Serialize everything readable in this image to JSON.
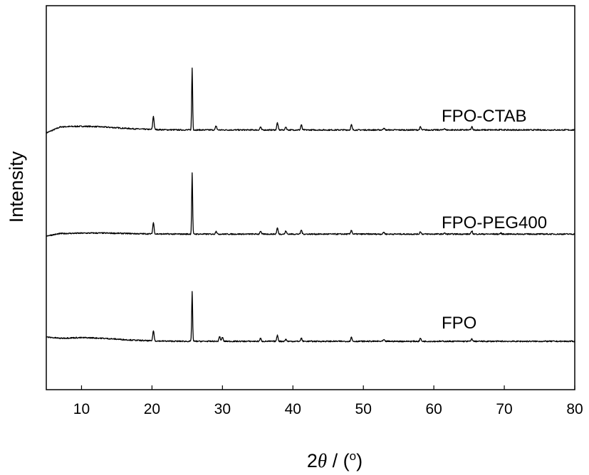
{
  "chart_data": {
    "type": "line",
    "title": "",
    "xlabel": "2θ / (°)",
    "xlabel_parts": {
      "prefix": "2",
      "symbol": "θ",
      "suffix": " / (",
      "degree": "o",
      "close": ")"
    },
    "ylabel": "Intensity",
    "xlim": [
      5,
      80
    ],
    "xticks": [
      10,
      20,
      30,
      40,
      50,
      60,
      70,
      80
    ],
    "ytick_labels": false,
    "grid": false,
    "legend": "none",
    "line_color": "#000000",
    "series": [
      {
        "name": "FPO-CTAB",
        "baseline": 2.05,
        "start_value": 2.0,
        "amorphous_hump": {
          "center": 10,
          "height": 0.035,
          "width": 7
        },
        "peaks": [
          [
            20.2,
            0.13
          ],
          [
            25.7,
            0.6
          ],
          [
            29.1,
            0.04
          ],
          [
            35.4,
            0.03
          ],
          [
            37.8,
            0.07
          ],
          [
            39.0,
            0.03
          ],
          [
            41.2,
            0.05
          ],
          [
            48.3,
            0.05
          ],
          [
            52.9,
            0.02
          ],
          [
            58.1,
            0.03
          ],
          [
            61.5,
            0.015
          ],
          [
            65.4,
            0.03
          ],
          [
            69.5,
            0.01
          ]
        ]
      },
      {
        "name": "FPO-PEG400",
        "baseline": 1.04,
        "start_value": 1.02,
        "amorphous_hump": {
          "center": 12,
          "height": 0.01,
          "width": 6
        },
        "peaks": [
          [
            20.2,
            0.11
          ],
          [
            25.7,
            0.59
          ],
          [
            29.1,
            0.03
          ],
          [
            35.4,
            0.03
          ],
          [
            37.8,
            0.06
          ],
          [
            39.0,
            0.03
          ],
          [
            41.2,
            0.04
          ],
          [
            48.3,
            0.04
          ],
          [
            52.9,
            0.02
          ],
          [
            58.1,
            0.025
          ],
          [
            61.5,
            0.01
          ],
          [
            65.4,
            0.03
          ],
          [
            69.5,
            0.01
          ]
        ]
      },
      {
        "name": "FPO",
        "baseline": 0.0,
        "start_value": 0.02,
        "amorphous_hump": {
          "center": 10,
          "height": 0.035,
          "width": 7
        },
        "peaks": [
          [
            20.2,
            0.1
          ],
          [
            25.7,
            0.48
          ],
          [
            29.6,
            0.05
          ],
          [
            30.0,
            0.04
          ],
          [
            35.4,
            0.03
          ],
          [
            37.8,
            0.06
          ],
          [
            39.0,
            0.02
          ],
          [
            41.2,
            0.03
          ],
          [
            48.3,
            0.04
          ],
          [
            52.9,
            0.015
          ],
          [
            58.1,
            0.03
          ],
          [
            65.4,
            0.025
          ]
        ]
      }
    ]
  }
}
